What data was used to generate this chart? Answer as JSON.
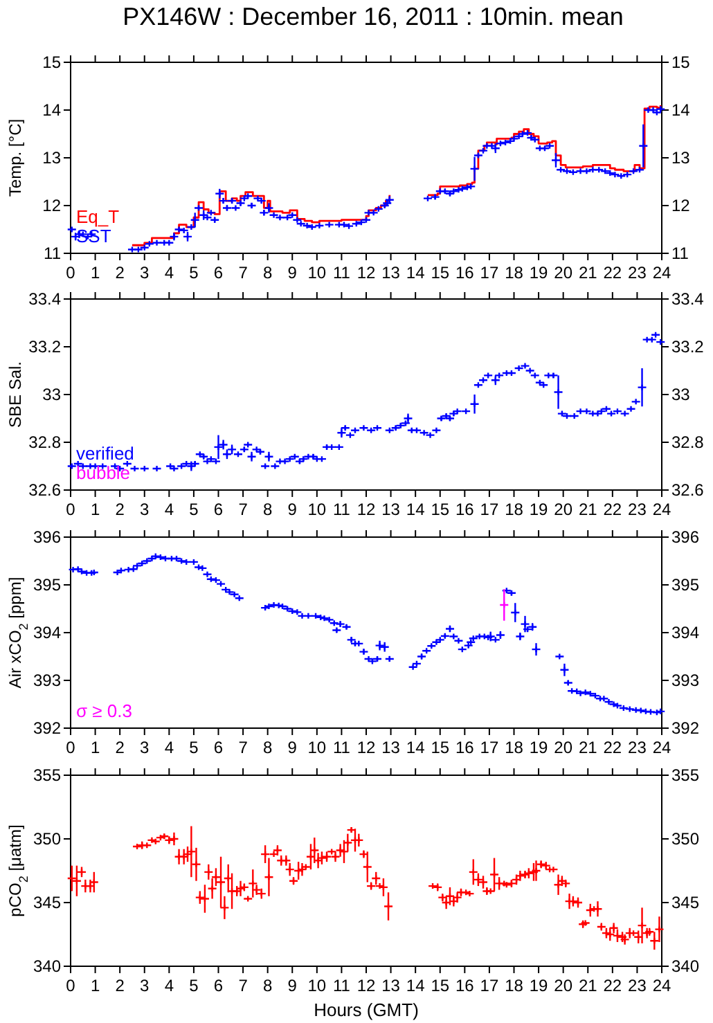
{
  "chart_data": [
    {
      "type": "scatter",
      "title": "PX146W : December 16, 2011 : 10min. mean",
      "ylabel": "Temp. [°C]",
      "xlim": [
        0,
        24
      ],
      "xticks": [
        0,
        1,
        2,
        3,
        4,
        5,
        6,
        7,
        8,
        9,
        10,
        11,
        12,
        13,
        14,
        15,
        16,
        17,
        18,
        19,
        20,
        21,
        22,
        23,
        24
      ],
      "ylim": [
        11,
        15
      ],
      "yticks": [
        11,
        12,
        13,
        14,
        15
      ],
      "y2lim": [
        11,
        15
      ],
      "y2ticks": [
        11,
        12,
        13,
        14,
        15
      ],
      "marker": "cross",
      "legend": "bottom left",
      "series": [
        {
          "name": "Eq_T",
          "type": "step",
          "marker": "none",
          "color": "#ff0000",
          "x": [
            2.5,
            3.0,
            3.3,
            4.2,
            4.4,
            4.7,
            5.0,
            5.2,
            5.4,
            5.6,
            5.85,
            6.05,
            6.3,
            6.55,
            6.75,
            6.9,
            7.1,
            7.4,
            7.6,
            7.85,
            8.0,
            8.1,
            8.6,
            8.9,
            9.2,
            9.5,
            9.8,
            10.1,
            11.0,
            11.7,
            12.0,
            12.1,
            12.4,
            12.6,
            12.8,
            12.95,
            13.1,
            14.5,
            14.9,
            15.0,
            15.5,
            15.8,
            16.1,
            16.3,
            16.4,
            16.55,
            16.8,
            16.9,
            17.25,
            17.3,
            17.9,
            18.0,
            18.2,
            18.4,
            18.6,
            18.8,
            19.0,
            19.35,
            19.55,
            19.7,
            19.9,
            20.1,
            20.8,
            21.2,
            21.9,
            22.1,
            22.45,
            22.9,
            23.1,
            23.3,
            23.5,
            23.8,
            23.95
          ],
          "values": [
            11.17,
            11.22,
            11.32,
            11.42,
            11.6,
            11.55,
            11.75,
            12.07,
            11.92,
            11.85,
            11.82,
            12.3,
            12.1,
            12.15,
            12.1,
            12.2,
            12.28,
            12.2,
            12.2,
            11.95,
            12.1,
            11.88,
            11.85,
            11.9,
            11.72,
            11.68,
            11.65,
            11.68,
            11.7,
            11.7,
            11.78,
            11.9,
            11.95,
            12.0,
            12.1,
            12.22,
            null,
            12.22,
            12.25,
            12.4,
            12.4,
            12.42,
            12.45,
            12.48,
            12.77,
            13.15,
            13.25,
            13.32,
            13.28,
            13.4,
            13.42,
            13.5,
            13.55,
            13.6,
            13.5,
            13.45,
            13.3,
            13.32,
            13.35,
            13.05,
            12.85,
            12.8,
            12.82,
            12.85,
            12.78,
            12.75,
            12.72,
            12.85,
            12.78,
            14.03,
            14.07,
            14.05,
            14.1
          ]
        },
        {
          "name": "SST",
          "color": "#0000ff",
          "x": [
            0.05,
            0.2,
            0.35,
            0.5,
            0.7,
            0.85,
            2.5,
            2.75,
            3.0,
            3.2,
            3.5,
            3.8,
            4.0,
            4.2,
            4.4,
            4.6,
            4.75,
            4.9,
            5.05,
            5.2,
            5.4,
            5.55,
            5.7,
            5.85,
            6.05,
            6.2,
            6.35,
            6.55,
            6.7,
            6.9,
            7.05,
            7.2,
            7.35,
            7.6,
            7.75,
            7.85,
            8.05,
            8.25,
            8.5,
            8.8,
            9.0,
            9.2,
            9.35,
            9.6,
            9.8,
            10.1,
            10.5,
            10.9,
            11.1,
            11.3,
            11.6,
            11.8,
            12.0,
            12.1,
            12.3,
            12.5,
            12.75,
            12.85,
            12.95,
            14.5,
            14.8,
            15.0,
            15.2,
            15.4,
            15.55,
            15.75,
            15.9,
            16.1,
            16.25,
            16.4,
            16.55,
            16.75,
            16.9,
            17.1,
            17.25,
            17.45,
            17.65,
            17.85,
            18.0,
            18.2,
            18.35,
            18.55,
            18.7,
            18.85,
            19.05,
            19.25,
            19.45,
            19.7,
            19.9,
            20.15,
            20.4,
            20.7,
            20.95,
            21.2,
            21.45,
            21.7,
            21.9,
            22.1,
            22.35,
            22.6,
            22.85,
            23.1,
            23.25,
            23.45,
            23.65,
            23.8,
            23.95
          ],
          "values": [
            11.5,
            11.35,
            11.4,
            11.4,
            11.35,
            11.4,
            11.08,
            11.08,
            11.12,
            11.2,
            11.22,
            11.22,
            11.22,
            11.35,
            11.5,
            11.48,
            11.35,
            11.55,
            11.7,
            11.95,
            11.8,
            11.75,
            11.85,
            11.7,
            12.25,
            12.1,
            11.95,
            12.1,
            11.95,
            12.05,
            12.15,
            12.2,
            12.0,
            12.15,
            12.1,
            11.85,
            11.95,
            11.8,
            11.75,
            11.75,
            11.8,
            11.7,
            11.62,
            11.58,
            11.55,
            11.58,
            11.6,
            11.6,
            11.6,
            11.57,
            11.62,
            11.65,
            11.7,
            11.85,
            11.85,
            11.93,
            12.0,
            12.05,
            12.12,
            12.15,
            12.18,
            12.3,
            12.3,
            12.25,
            12.3,
            12.33,
            12.35,
            12.38,
            12.4,
            12.77,
            13.05,
            13.15,
            13.25,
            13.25,
            13.2,
            13.3,
            13.32,
            13.35,
            13.4,
            13.45,
            13.5,
            13.52,
            13.42,
            13.38,
            13.2,
            13.2,
            13.25,
            12.95,
            12.75,
            12.72,
            12.7,
            12.72,
            12.72,
            12.75,
            12.75,
            12.72,
            12.68,
            12.65,
            12.62,
            12.65,
            12.72,
            12.75,
            13.25,
            14.0,
            14.0,
            13.95,
            14.02
          ],
          "errors": [
            null,
            0.08,
            0.08,
            null,
            null,
            null,
            null,
            null,
            null,
            null,
            null,
            null,
            null,
            0.08,
            null,
            null,
            0.1,
            null,
            0.15,
            null,
            0.1,
            null,
            null,
            0.06,
            0.1,
            0.06,
            0.06,
            0.06,
            null,
            0.06,
            null,
            null,
            0.06,
            null,
            0.06,
            0.06,
            0.1,
            null,
            null,
            null,
            null,
            null,
            null,
            null,
            null,
            null,
            null,
            null,
            null,
            null,
            null,
            null,
            null,
            null,
            null,
            null,
            null,
            0.06,
            0.08,
            null,
            0.05,
            null,
            0.05,
            0.05,
            null,
            null,
            null,
            null,
            null,
            0.25,
            null,
            null,
            null,
            null,
            0.1,
            null,
            null,
            null,
            null,
            null,
            null,
            null,
            0.06,
            null,
            null,
            null,
            null,
            0.15,
            null,
            null,
            null,
            null,
            null,
            null,
            null,
            null,
            null,
            null,
            null,
            null,
            null,
            null,
            0.45,
            null,
            null,
            null,
            0.06
          ]
        }
      ]
    },
    {
      "type": "scatter",
      "ylabel": "SBE Sal.",
      "xlim": [
        0,
        24
      ],
      "xticks": [
        0,
        1,
        2,
        3,
        4,
        5,
        6,
        7,
        8,
        9,
        10,
        11,
        12,
        13,
        14,
        15,
        16,
        17,
        18,
        19,
        20,
        21,
        22,
        23,
        24
      ],
      "ylim": [
        32.6,
        33.4
      ],
      "yticks": [
        32.6,
        32.8,
        33,
        33.2,
        33.4
      ],
      "y2lim": [
        32.6,
        33.4
      ],
      "y2ticks": [
        32.6,
        32.8,
        33,
        33.2,
        33.4
      ],
      "marker": "cross",
      "legend": "bottom left",
      "series": [
        {
          "name": "verified",
          "color": "#0000ff",
          "x": [
            0.05,
            0.3,
            0.5,
            0.8,
            1.0,
            1.3,
            1.8,
            2.0,
            2.3,
            2.6,
            3.0,
            3.5,
            4.05,
            4.2,
            4.5,
            4.7,
            4.9,
            5.05,
            5.25,
            5.4,
            5.55,
            5.7,
            5.9,
            6.0,
            6.2,
            6.35,
            6.55,
            6.8,
            7.05,
            7.2,
            7.35,
            7.55,
            7.7,
            7.9,
            8.05,
            8.3,
            8.5,
            8.7,
            8.9,
            9.1,
            9.3,
            9.45,
            9.65,
            9.85,
            10.0,
            10.2,
            10.4,
            10.6,
            10.9,
            11.0,
            11.15,
            11.35,
            11.55,
            11.9,
            12.2,
            12.45,
            12.95,
            13.2,
            13.4,
            13.6,
            13.7,
            13.85,
            14.05,
            14.35,
            14.6,
            14.85,
            15.05,
            15.25,
            15.4,
            15.55,
            15.7,
            16.05,
            16.4,
            16.55,
            16.75,
            16.95,
            17.25,
            17.4,
            17.7,
            17.9,
            18.2,
            18.45,
            18.65,
            18.85,
            19.05,
            19.2,
            19.4,
            19.6,
            19.8,
            19.95,
            20.15,
            20.45,
            20.7,
            20.95,
            21.2,
            21.4,
            21.55,
            21.75,
            21.95,
            22.2,
            22.5,
            22.75,
            22.95,
            23.2,
            23.4,
            23.6,
            23.75,
            23.95
          ],
          "values": [
            32.7,
            32.71,
            32.7,
            32.7,
            32.7,
            32.7,
            32.7,
            32.69,
            32.71,
            32.69,
            32.69,
            32.69,
            32.7,
            32.69,
            32.7,
            32.71,
            32.7,
            32.71,
            32.75,
            32.74,
            32.72,
            32.73,
            32.72,
            32.78,
            32.79,
            32.75,
            32.77,
            32.75,
            32.77,
            32.79,
            32.74,
            32.77,
            32.76,
            32.7,
            32.74,
            32.7,
            32.72,
            32.72,
            32.73,
            32.74,
            32.72,
            32.73,
            32.74,
            32.74,
            32.73,
            32.73,
            32.78,
            32.78,
            32.78,
            32.84,
            32.86,
            32.83,
            32.85,
            32.86,
            32.85,
            32.86,
            32.85,
            32.86,
            32.87,
            32.88,
            32.9,
            32.85,
            32.85,
            32.84,
            32.83,
            32.85,
            32.9,
            32.91,
            32.9,
            32.92,
            32.93,
            32.93,
            32.96,
            33.04,
            33.06,
            33.08,
            33.06,
            33.08,
            33.09,
            33.09,
            33.11,
            33.12,
            33.1,
            33.08,
            33.05,
            33.04,
            33.08,
            33.08,
            33.01,
            32.92,
            32.91,
            32.91,
            32.93,
            32.93,
            32.92,
            32.92,
            32.93,
            32.94,
            32.92,
            32.93,
            32.92,
            32.94,
            32.97,
            33.03,
            33.23,
            33.23,
            33.25,
            33.22
          ],
          "errors": [
            0.01,
            null,
            null,
            null,
            null,
            null,
            null,
            null,
            null,
            null,
            null,
            null,
            null,
            null,
            null,
            null,
            0.02,
            0.01,
            null,
            0.01,
            null,
            null,
            null,
            0.05,
            0.02,
            0.02,
            0.02,
            null,
            0.01,
            null,
            0.02,
            null,
            0.01,
            null,
            0.02,
            null,
            null,
            null,
            null,
            null,
            0.01,
            0.01,
            null,
            0.01,
            null,
            null,
            0.01,
            null,
            null,
            0.02,
            0.01,
            null,
            null,
            null,
            null,
            null,
            null,
            0.01,
            0.01,
            0.01,
            0.02,
            0.01,
            null,
            null,
            null,
            null,
            0.01,
            0.01,
            0.01,
            0.01,
            null,
            null,
            0.04,
            null,
            null,
            null,
            0.02,
            null,
            null,
            null,
            null,
            null,
            null,
            null,
            null,
            null,
            null,
            0.01,
            0.07,
            null,
            null,
            null,
            null,
            null,
            null,
            null,
            null,
            null,
            null,
            null,
            null,
            null,
            null,
            0.08,
            null,
            null,
            null,
            null
          ]
        },
        {
          "name": "bubble",
          "color": "#ff00ff"
        }
      ]
    },
    {
      "type": "scatter",
      "ylabel": "Air xCO$_{2}$ [ppm]",
      "xlim": [
        0,
        24
      ],
      "xticks": [
        0,
        1,
        2,
        3,
        4,
        5,
        6,
        7,
        8,
        9,
        10,
        11,
        12,
        13,
        14,
        15,
        16,
        17,
        18,
        19,
        20,
        21,
        22,
        23,
        24
      ],
      "ylim": [
        392,
        396
      ],
      "yticks": [
        392,
        393,
        394,
        395,
        396
      ],
      "y2lim": [
        392,
        396
      ],
      "y2ticks": [
        392,
        393,
        394,
        395,
        396
      ],
      "marker": "cross",
      "legend": "bottom left",
      "series": [
        {
          "color": "#0000ff",
          "x": [
            0.1,
            0.3,
            0.45,
            0.65,
            0.85,
            0.95,
            1.9,
            2.05,
            2.35,
            2.55,
            2.7,
            2.9,
            3.1,
            3.3,
            3.45,
            3.65,
            3.85,
            4.1,
            4.3,
            4.5,
            4.7,
            5.0,
            5.2,
            5.35,
            5.55,
            5.7,
            5.9,
            6.1,
            6.3,
            6.45,
            6.65,
            6.85,
            7.9,
            8.05,
            8.25,
            8.45,
            8.6,
            8.8,
            9.0,
            9.2,
            9.4,
            9.65,
            9.95,
            10.15,
            10.3,
            10.5,
            10.7,
            10.8,
            10.95,
            11.2,
            11.4,
            11.55,
            11.7,
            11.9,
            12.1,
            12.25,
            12.45,
            12.55,
            12.75,
            12.95,
            13.9,
            14.05,
            14.25,
            14.45,
            14.65,
            14.85,
            15.0,
            15.2,
            15.4,
            15.55,
            15.75,
            15.9,
            16.15,
            16.25,
            16.35,
            16.6,
            16.8,
            16.95,
            17.05,
            17.25,
            17.45,
            17.7,
            17.9,
            18.05,
            18.25,
            18.45,
            18.55,
            18.75,
            18.9,
            19.85,
            20.05,
            20.2,
            20.35,
            20.55,
            20.7,
            20.9,
            21.1,
            21.3,
            21.5,
            21.65,
            21.85,
            22.05,
            22.2,
            22.45,
            22.7,
            22.95,
            23.15,
            23.35,
            23.55,
            23.8,
            23.95
          ],
          "values": [
            395.32,
            395.33,
            395.28,
            395.25,
            395.25,
            395.26,
            395.26,
            395.3,
            395.32,
            395.33,
            395.4,
            395.45,
            395.5,
            395.55,
            395.6,
            395.58,
            395.55,
            395.55,
            395.55,
            395.5,
            395.48,
            395.48,
            395.37,
            395.35,
            395.22,
            395.12,
            395.1,
            395.02,
            394.9,
            394.85,
            394.8,
            394.72,
            394.52,
            394.55,
            394.58,
            394.57,
            394.55,
            394.5,
            394.45,
            394.43,
            394.35,
            394.35,
            394.35,
            394.32,
            394.3,
            394.27,
            394.2,
            394.05,
            394.18,
            394.12,
            393.85,
            393.77,
            393.77,
            393.6,
            393.45,
            393.4,
            393.45,
            393.73,
            393.7,
            393.45,
            393.28,
            393.35,
            393.5,
            393.62,
            393.72,
            393.8,
            393.85,
            393.93,
            394.08,
            393.92,
            393.83,
            393.65,
            393.73,
            393.8,
            393.88,
            393.92,
            393.92,
            393.9,
            393.92,
            393.85,
            393.95,
            394.88,
            394.83,
            394.42,
            393.92,
            394.18,
            394.07,
            394.12,
            393.65,
            393.5,
            393.22,
            392.95,
            392.78,
            392.77,
            392.73,
            392.75,
            392.72,
            392.68,
            392.62,
            392.62,
            392.55,
            392.5,
            392.47,
            392.42,
            392.4,
            392.38,
            392.37,
            392.35,
            392.34,
            392.33,
            392.35
          ],
          "errors": [
            null,
            null,
            null,
            null,
            null,
            null,
            null,
            null,
            null,
            null,
            null,
            null,
            null,
            null,
            null,
            null,
            null,
            null,
            null,
            null,
            null,
            null,
            null,
            null,
            null,
            null,
            null,
            null,
            null,
            null,
            null,
            null,
            null,
            null,
            null,
            null,
            null,
            null,
            null,
            null,
            null,
            null,
            null,
            null,
            null,
            null,
            null,
            0.05,
            0.06,
            0.05,
            0.06,
            0.05,
            null,
            0.06,
            null,
            null,
            0.05,
            0.1,
            0.1,
            0.06,
            null,
            null,
            0.06,
            null,
            null,
            null,
            null,
            0.05,
            0.07,
            null,
            null,
            null,
            null,
            null,
            null,
            null,
            null,
            null,
            0.1,
            null,
            0.08,
            null,
            0.05,
            0.2,
            0.08,
            0.17,
            0.05,
            0.08,
            0.13,
            null,
            0.13,
            0.05,
            null,
            null,
            null,
            null,
            null,
            null,
            null,
            null,
            null,
            null,
            null,
            null,
            null,
            null,
            null,
            null,
            null,
            null,
            null
          ]
        },
        {
          "name": "σ ≥ 0.3",
          "color": "#ff00ff",
          "x": [
            17.6
          ],
          "values": [
            394.58
          ],
          "errors": [
            0.33
          ]
        }
      ]
    },
    {
      "type": "scatter",
      "ylabel": "pCO$_{2}$ [μatm]",
      "xlabel": "Hours (GMT)",
      "xlim": [
        0,
        24
      ],
      "xticks": [
        0,
        1,
        2,
        3,
        4,
        5,
        6,
        7,
        8,
        9,
        10,
        11,
        12,
        13,
        14,
        15,
        16,
        17,
        18,
        19,
        20,
        21,
        22,
        23,
        24
      ],
      "ylim": [
        340,
        355
      ],
      "yticks": [
        340,
        345,
        350,
        355
      ],
      "y2lim": [
        340,
        355
      ],
      "y2ticks": [
        340,
        345,
        350,
        355
      ],
      "marker": "cross",
      "series": [
        {
          "color": "#ff0000",
          "x": [
            0.05,
            0.25,
            0.45,
            0.6,
            0.8,
            0.95,
            2.7,
            2.9,
            3.1,
            3.3,
            3.45,
            3.65,
            3.8,
            4.0,
            4.2,
            4.4,
            4.6,
            4.75,
            4.9,
            5.1,
            5.25,
            5.45,
            5.6,
            5.75,
            5.9,
            6.1,
            6.25,
            6.4,
            6.55,
            6.75,
            6.9,
            7.05,
            7.2,
            7.4,
            7.55,
            7.75,
            7.9,
            8.05,
            8.25,
            8.4,
            8.55,
            8.75,
            8.9,
            9.05,
            9.25,
            9.4,
            9.55,
            9.75,
            9.9,
            10.05,
            10.2,
            10.4,
            10.6,
            10.75,
            10.95,
            11.1,
            11.25,
            11.4,
            11.55,
            11.7,
            11.9,
            12.05,
            12.2,
            12.4,
            12.55,
            12.7,
            12.9,
            14.7,
            14.9,
            15.1,
            15.25,
            15.4,
            15.55,
            15.7,
            15.85,
            16.05,
            16.2,
            16.35,
            16.55,
            16.75,
            16.9,
            17.05,
            17.2,
            17.4,
            17.6,
            17.7,
            17.9,
            18.1,
            18.25,
            18.45,
            18.6,
            18.8,
            18.9,
            19.1,
            19.3,
            19.45,
            19.6,
            19.8,
            19.95,
            20.1,
            20.25,
            20.4,
            20.6,
            20.8,
            20.9,
            21.1,
            21.25,
            21.4,
            21.55,
            21.75,
            21.9,
            22.05,
            22.2,
            22.4,
            22.5,
            22.7,
            22.85,
            23.05,
            23.2,
            23.4,
            23.5,
            23.7,
            23.9
          ],
          "values": [
            346.9,
            346.7,
            347.4,
            346.3,
            346.3,
            346.6,
            349.4,
            349.5,
            349.5,
            349.9,
            349.8,
            350.1,
            350.2,
            349.9,
            350.0,
            348.6,
            348.6,
            348.8,
            349.0,
            348.0,
            345.4,
            345.3,
            347.4,
            346.1,
            347.0,
            346.6,
            344.6,
            346.9,
            345.9,
            345.9,
            346.1,
            346.2,
            345.3,
            346.5,
            346.0,
            345.7,
            348.8,
            347.0,
            348.8,
            349.1,
            348.3,
            348.3,
            347.6,
            346.7,
            347.5,
            347.6,
            347.8,
            348.6,
            349.1,
            348.3,
            348.5,
            348.6,
            349.0,
            348.6,
            349.1,
            349.0,
            349.7,
            350.7,
            349.9,
            349.9,
            348.8,
            347.8,
            346.3,
            346.9,
            346.3,
            346.2,
            344.7,
            346.3,
            346.2,
            345.4,
            345.0,
            345.5,
            345.1,
            345.4,
            345.8,
            345.8,
            345.7,
            347.4,
            346.8,
            346.6,
            345.9,
            345.9,
            347.2,
            346.5,
            346.5,
            346.4,
            346.5,
            346.8,
            347.1,
            347.2,
            347.3,
            347.4,
            347.5,
            348.0,
            347.9,
            347.6,
            347.6,
            346.4,
            346.7,
            346.5,
            345.1,
            345.1,
            345.0,
            343.3,
            343.4,
            344.4,
            344.5,
            344.5,
            343.1,
            342.6,
            342.5,
            343.0,
            342.4,
            342.3,
            342.1,
            342.6,
            342.6,
            342.3,
            343.2,
            342.6,
            342.7,
            342.0,
            342.9
          ],
          "errors": [
            1,
            1.2,
            0.4,
            0.5,
            0.5,
            0.8,
            null,
            0.3,
            null,
            null,
            null,
            null,
            0.2,
            0.3,
            0.5,
            0.6,
            0.6,
            0.6,
            2,
            1.3,
            0.5,
            1.1,
            0.6,
            0.8,
            0.7,
            2,
            0.9,
            1.1,
            1.4,
            0.4,
            0.6,
            0.3,
            null,
            1.1,
            0.4,
            0.4,
            0.7,
            1.5,
            null,
            0.4,
            0.4,
            0.4,
            0.5,
            0.3,
            0.7,
            0.5,
            null,
            1,
            1,
            0.6,
            0.5,
            0.4,
            null,
            0.4,
            0.5,
            0.9,
            0.7,
            0.2,
            0.9,
            0.5,
            0.3,
            1.2,
            0.3,
            0.5,
            null,
            0.7,
            1.1,
            null,
            0.3,
            0.3,
            0.5,
            0.7,
            0.4,
            0.4,
            0.3,
            null,
            null,
            1,
            0.5,
            0.5,
            0.3,
            null,
            1.3,
            0.5,
            null,
            null,
            0.3,
            0.4,
            0.4,
            0.3,
            0.4,
            0.7,
            0.8,
            0.3,
            0.3,
            null,
            null,
            0.8,
            0.4,
            0.3,
            0.6,
            0.4,
            0.4,
            0.3,
            null,
            0.5,
            null,
            0.6,
            0.3,
            0.4,
            0.5,
            0.4,
            0.5,
            0.4,
            0.4,
            0.4,
            null,
            0.5,
            1.4,
            0.4,
            0.3,
            0.7,
            1
          ]
        }
      ]
    }
  ]
}
